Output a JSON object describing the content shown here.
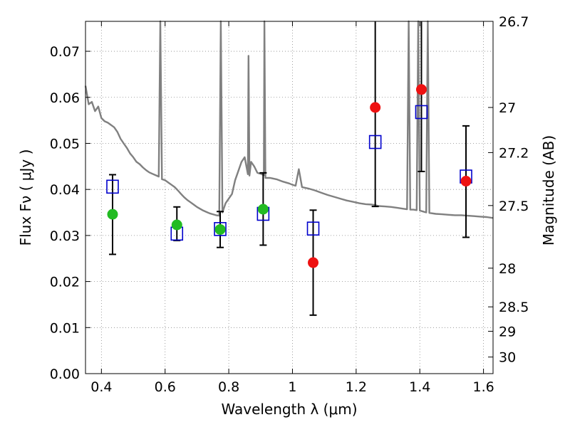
{
  "chart_data": {
    "type": "scatter",
    "xlabel": "Wavelength  λ (μm)",
    "ylabel": "Flux  Fν  ( μJy )",
    "ylabel_right": "Magnitude (AB)",
    "xlim": [
      0.35,
      1.63
    ],
    "ylim": [
      0.0,
      0.0765
    ],
    "grid": true,
    "x_ticks": [
      0.4,
      0.6,
      0.8,
      1.0,
      1.2,
      1.4,
      1.6
    ],
    "x_tick_labels": [
      "0.4",
      "0.6",
      "0.8",
      "1",
      "1.2",
      "1.4",
      "1.6"
    ],
    "y_ticks": [
      0.0,
      0.01,
      0.02,
      0.03,
      0.04,
      0.05,
      0.06,
      0.07
    ],
    "y_tick_labels": [
      "0.00",
      "0.01",
      "0.02",
      "0.03",
      "0.04",
      "0.05",
      "0.06",
      "0.07"
    ],
    "right_ticks": [
      {
        "flux": 0.0765,
        "label": "26.7"
      },
      {
        "flux": 0.0578,
        "label": "27"
      },
      {
        "flux": 0.048,
        "label": "27.2"
      },
      {
        "flux": 0.0365,
        "label": "27.5"
      },
      {
        "flux": 0.0229,
        "label": "28"
      },
      {
        "flux": 0.0145,
        "label": "28.5"
      },
      {
        "flux": 0.0092,
        "label": "29"
      },
      {
        "flux": 0.0036,
        "label": "30"
      }
    ],
    "measured_points": [
      {
        "x": 0.435,
        "y": 0.0346,
        "yerr_low": 0.0259,
        "yerr_high": 0.0432,
        "color": "#22bb22"
      },
      {
        "x": 0.637,
        "y": 0.0323,
        "yerr_low": 0.0289,
        "yerr_high": 0.0362,
        "color": "#22bb22"
      },
      {
        "x": 0.773,
        "y": 0.0313,
        "yerr_low": 0.0274,
        "yerr_high": 0.0352,
        "color": "#22bb22"
      },
      {
        "x": 0.908,
        "y": 0.0357,
        "yerr_low": 0.0279,
        "yerr_high": 0.0436,
        "color": "#22bb22"
      },
      {
        "x": 1.065,
        "y": 0.0241,
        "yerr_low": 0.0127,
        "yerr_high": 0.0355,
        "color": "#ee1111"
      },
      {
        "x": 1.26,
        "y": 0.0578,
        "yerr_low": 0.0363,
        "yerr_high": 0.0765,
        "color": "#ee1111"
      },
      {
        "x": 1.405,
        "y": 0.0617,
        "yerr_low": 0.0439,
        "yerr_high": 0.0765,
        "color": "#ee1111"
      },
      {
        "x": 1.545,
        "y": 0.0418,
        "yerr_low": 0.0296,
        "yerr_high": 0.0538,
        "color": "#ee1111"
      }
    ],
    "model_points": [
      {
        "x": 0.435,
        "y": 0.0406
      },
      {
        "x": 0.637,
        "y": 0.0304
      },
      {
        "x": 0.773,
        "y": 0.0314
      },
      {
        "x": 0.908,
        "y": 0.0347
      },
      {
        "x": 1.065,
        "y": 0.0315
      },
      {
        "x": 1.26,
        "y": 0.0503
      },
      {
        "x": 1.405,
        "y": 0.0568
      },
      {
        "x": 1.545,
        "y": 0.0428
      }
    ],
    "model_spectrum": [
      [
        0.35,
        0.0625
      ],
      [
        0.36,
        0.0585
      ],
      [
        0.37,
        0.059
      ],
      [
        0.38,
        0.057
      ],
      [
        0.39,
        0.058
      ],
      [
        0.4,
        0.0555
      ],
      [
        0.41,
        0.0548
      ],
      [
        0.42,
        0.0545
      ],
      [
        0.43,
        0.054
      ],
      [
        0.44,
        0.0535
      ],
      [
        0.45,
        0.0525
      ],
      [
        0.46,
        0.051
      ],
      [
        0.47,
        0.05
      ],
      [
        0.48,
        0.049
      ],
      [
        0.49,
        0.0478
      ],
      [
        0.5,
        0.047
      ],
      [
        0.51,
        0.046
      ],
      [
        0.52,
        0.0455
      ],
      [
        0.53,
        0.0448
      ],
      [
        0.54,
        0.0442
      ],
      [
        0.55,
        0.0437
      ],
      [
        0.56,
        0.0434
      ],
      [
        0.57,
        0.0431
      ],
      [
        0.58,
        0.0428
      ],
      [
        0.585,
        0.0765
      ],
      [
        0.59,
        0.0422
      ],
      [
        0.6,
        0.042
      ],
      [
        0.61,
        0.0415
      ],
      [
        0.62,
        0.041
      ],
      [
        0.63,
        0.0405
      ],
      [
        0.64,
        0.0398
      ],
      [
        0.65,
        0.039
      ],
      [
        0.66,
        0.0383
      ],
      [
        0.67,
        0.0377
      ],
      [
        0.68,
        0.0372
      ],
      [
        0.69,
        0.0367
      ],
      [
        0.7,
        0.0362
      ],
      [
        0.71,
        0.0358
      ],
      [
        0.72,
        0.0354
      ],
      [
        0.73,
        0.0351
      ],
      [
        0.74,
        0.0348
      ],
      [
        0.75,
        0.0346
      ],
      [
        0.76,
        0.0344
      ],
      [
        0.77,
        0.0343
      ],
      [
        0.775,
        0.0765
      ],
      [
        0.78,
        0.035
      ],
      [
        0.79,
        0.037
      ],
      [
        0.8,
        0.038
      ],
      [
        0.81,
        0.039
      ],
      [
        0.82,
        0.042
      ],
      [
        0.83,
        0.044
      ],
      [
        0.84,
        0.046
      ],
      [
        0.85,
        0.047
      ],
      [
        0.86,
        0.0433
      ],
      [
        0.862,
        0.069
      ],
      [
        0.865,
        0.043
      ],
      [
        0.87,
        0.046
      ],
      [
        0.88,
        0.045
      ],
      [
        0.89,
        0.0436
      ],
      [
        0.9,
        0.0434
      ],
      [
        0.91,
        0.0431
      ],
      [
        0.912,
        0.0765
      ],
      [
        0.915,
        0.0425
      ],
      [
        0.93,
        0.0425
      ],
      [
        0.95,
        0.0422
      ],
      [
        0.97,
        0.0417
      ],
      [
        0.99,
        0.0413
      ],
      [
        1.0,
        0.041
      ],
      [
        1.01,
        0.0408
      ],
      [
        1.02,
        0.0444
      ],
      [
        1.03,
        0.0405
      ],
      [
        1.05,
        0.0402
      ],
      [
        1.07,
        0.0398
      ],
      [
        1.09,
        0.0393
      ],
      [
        1.11,
        0.0388
      ],
      [
        1.13,
        0.0384
      ],
      [
        1.15,
        0.038
      ],
      [
        1.17,
        0.0376
      ],
      [
        1.19,
        0.0373
      ],
      [
        1.21,
        0.037
      ],
      [
        1.23,
        0.0368
      ],
      [
        1.25,
        0.0367
      ],
      [
        1.26,
        0.0366
      ],
      [
        1.27,
        0.0364
      ],
      [
        1.29,
        0.0363
      ],
      [
        1.31,
        0.0362
      ],
      [
        1.33,
        0.036
      ],
      [
        1.35,
        0.0358
      ],
      [
        1.36,
        0.0357
      ],
      [
        1.365,
        0.0765
      ],
      [
        1.37,
        0.0356
      ],
      [
        1.38,
        0.0356
      ],
      [
        1.39,
        0.0355
      ],
      [
        1.395,
        0.0765
      ],
      [
        1.4,
        0.0354
      ],
      [
        1.41,
        0.0352
      ],
      [
        1.42,
        0.035
      ],
      [
        1.425,
        0.0765
      ],
      [
        1.43,
        0.0349
      ],
      [
        1.45,
        0.0347
      ],
      [
        1.47,
        0.0346
      ],
      [
        1.49,
        0.0345
      ],
      [
        1.51,
        0.0344
      ],
      [
        1.53,
        0.0344
      ],
      [
        1.55,
        0.0343
      ],
      [
        1.57,
        0.0342
      ],
      [
        1.59,
        0.0341
      ],
      [
        1.61,
        0.034
      ],
      [
        1.63,
        0.0338
      ]
    ],
    "colors": {
      "spectrum": "#808080",
      "model_marker": "#0000cc",
      "errorbar": "#000000",
      "grid": "#888888"
    }
  }
}
